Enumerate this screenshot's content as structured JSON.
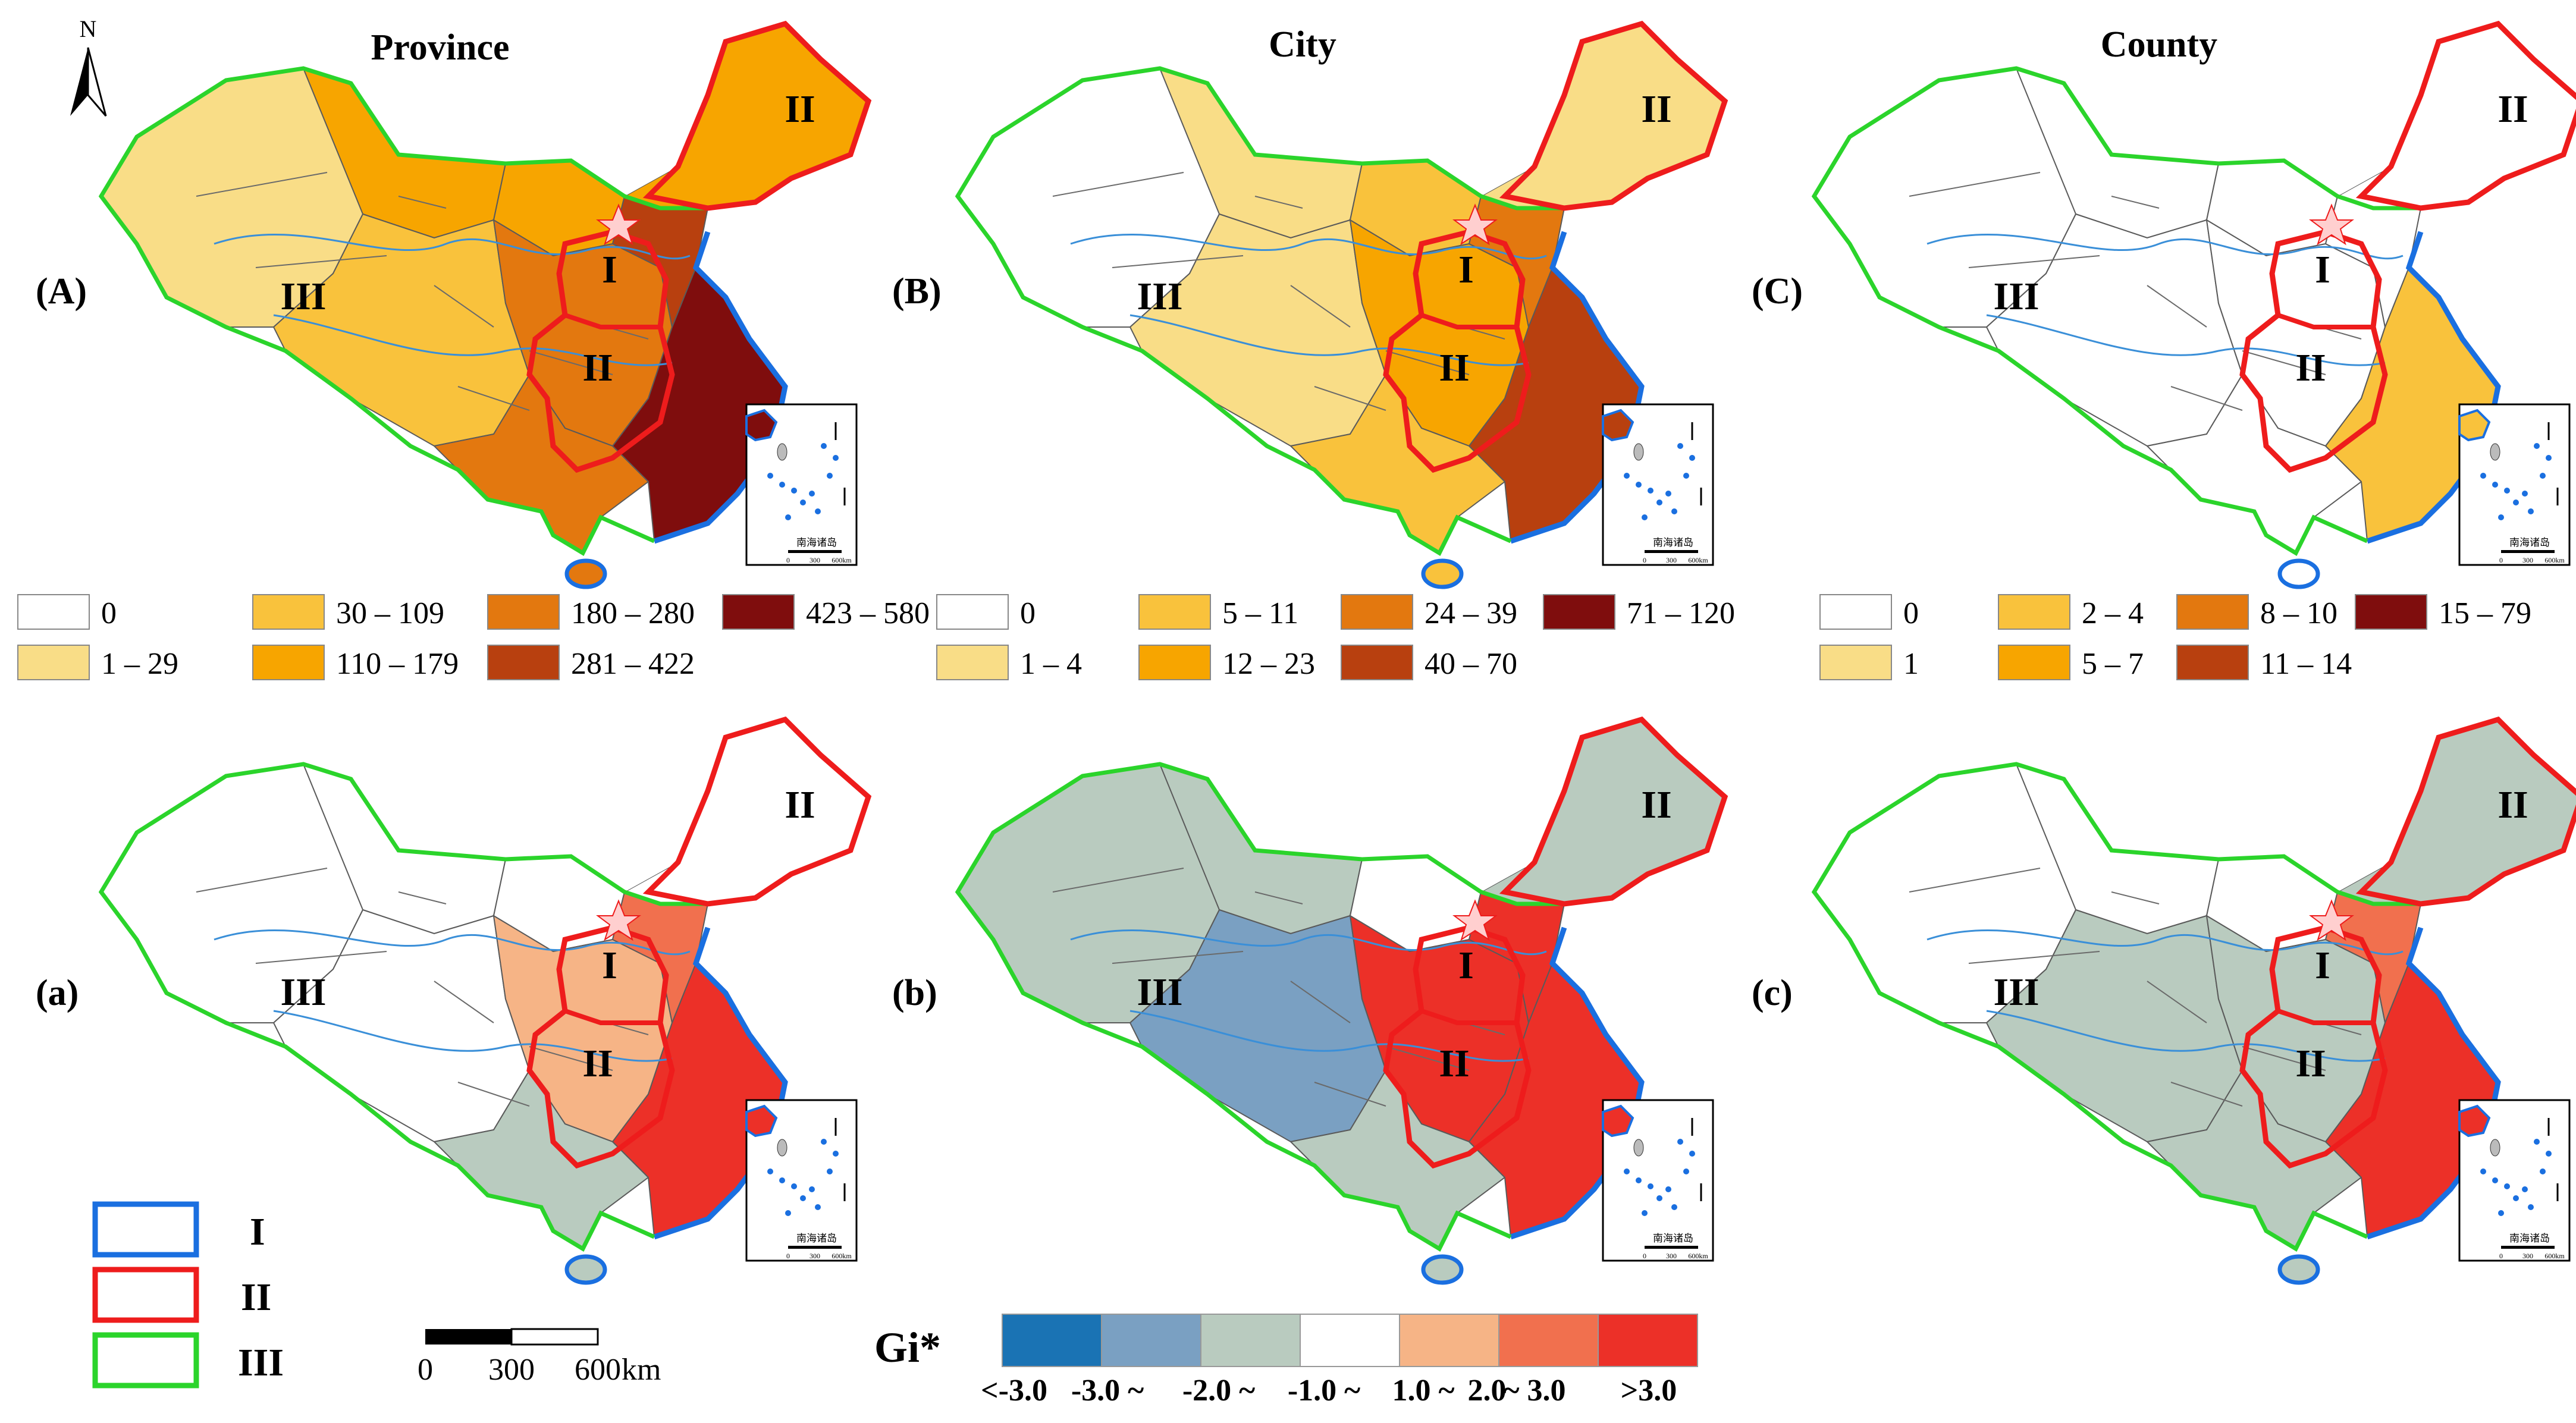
{
  "columns": [
    "Province",
    "City",
    "County"
  ],
  "north_arrow": {
    "label": "N"
  },
  "panels": [
    {
      "label": "(A)",
      "column": "Province",
      "row": "distribution"
    },
    {
      "label": "(B)",
      "column": "City",
      "row": "distribution"
    },
    {
      "label": "(C)",
      "column": "County",
      "row": "distribution"
    },
    {
      "label": "(a)",
      "column": "Province",
      "row": "hotspot"
    },
    {
      "label": "(b)",
      "column": "City",
      "row": "hotspot"
    },
    {
      "label": "(c)",
      "column": "County",
      "row": "hotspot"
    }
  ],
  "zone_labels": [
    "I",
    "II",
    "II",
    "III"
  ],
  "inset_label": "南海诸岛",
  "inset_scale": [
    "0",
    "300",
    "600km"
  ],
  "legends": {
    "province": [
      {
        "label": "0",
        "color": "#ffffff"
      },
      {
        "label": "1 – 29",
        "color": "#f9dd87"
      },
      {
        "label": "30 – 109",
        "color": "#f9c23c"
      },
      {
        "label": "110 – 179",
        "color": "#f7a500"
      },
      {
        "label": "180 – 280",
        "color": "#e3780f"
      },
      {
        "label": "281 – 422",
        "color": "#b8400f"
      },
      {
        "label": "423 – 580",
        "color": "#7f0d0d"
      }
    ],
    "city": [
      {
        "label": "0",
        "color": "#ffffff"
      },
      {
        "label": "1 – 4",
        "color": "#f9dd87"
      },
      {
        "label": "5 – 11",
        "color": "#f9c23c"
      },
      {
        "label": "12 – 23",
        "color": "#f7a500"
      },
      {
        "label": "24 – 39",
        "color": "#e3780f"
      },
      {
        "label": "40 – 70",
        "color": "#b8400f"
      },
      {
        "label": "71 – 120",
        "color": "#7f0d0d"
      }
    ],
    "county": [
      {
        "label": "0",
        "color": "#ffffff"
      },
      {
        "label": "1",
        "color": "#f9dd87"
      },
      {
        "label": "2 – 4",
        "color": "#f9c23c"
      },
      {
        "label": "5 – 7",
        "color": "#f7a500"
      },
      {
        "label": "8 – 10",
        "color": "#e3780f"
      },
      {
        "label": "11 – 14",
        "color": "#b8400f"
      },
      {
        "label": "15 – 79",
        "color": "#7f0d0d"
      }
    ]
  },
  "region_legend": [
    {
      "label": "I",
      "color": "#1a6fe0"
    },
    {
      "label": "II",
      "color": "#ee1c1c"
    },
    {
      "label": "III",
      "color": "#2bd42b"
    }
  ],
  "scale_bar": {
    "ticks": [
      "0",
      "300",
      "600"
    ],
    "unit": "km"
  },
  "gi_legend": {
    "title": "Gi*",
    "colors": [
      "#1a73b4",
      "#7aa0c2",
      "#b9cbbf",
      "#ffffff",
      "#f6b486",
      "#f1704e",
      "#ec3028"
    ],
    "labels": [
      "<-3.0",
      "-3.0 ~",
      "-2.0 ~",
      "-1.0 ~",
      "1.0 ~",
      "2.0",
      "~ 3.0",
      ">3.0"
    ]
  },
  "map_fills": {
    "A": {
      "west": "#f9dd87",
      "northwest": "#f7a500",
      "north": "#f7a500",
      "center": "#e3780f",
      "south": "#e3780f",
      "east": "#b8400f",
      "coast": "#7f0d0d",
      "northeast": "#f7a500",
      "southwest": "#f9c23c"
    },
    "B": {
      "west": "#ffffff",
      "northwest": "#f9dd87",
      "north": "#f9c23c",
      "center": "#f7a500",
      "south": "#f9c23c",
      "east": "#e3780f",
      "coast": "#b8400f",
      "northeast": "#f9dd87",
      "southwest": "#f9dd87"
    },
    "C": {
      "west": "#ffffff",
      "northwest": "#ffffff",
      "north": "#ffffff",
      "center": "#ffffff",
      "south": "#ffffff",
      "east": "#ffffff",
      "coast": "#f9c23c",
      "northeast": "#ffffff",
      "southwest": "#ffffff"
    },
    "a": {
      "west": "#ffffff",
      "northwest": "#ffffff",
      "north": "#ffffff",
      "center": "#f6b486",
      "south": "#b9cbbf",
      "east": "#f1704e",
      "coast": "#ec3028",
      "northeast": "#ffffff",
      "southwest": "#ffffff"
    },
    "b": {
      "west": "#b9cbbf",
      "northwest": "#b9cbbf",
      "north": "#ffffff",
      "center": "#ec3028",
      "south": "#b9cbbf",
      "east": "#ec3028",
      "coast": "#ec3028",
      "northeast": "#b9cbbf",
      "southwest": "#7aa0c2"
    },
    "c": {
      "west": "#ffffff",
      "northwest": "#ffffff",
      "north": "#ffffff",
      "center": "#b9cbbf",
      "south": "#b9cbbf",
      "east": "#f1704e",
      "coast": "#ec3028",
      "northeast": "#b9cbbf",
      "southwest": "#b9cbbf"
    }
  }
}
